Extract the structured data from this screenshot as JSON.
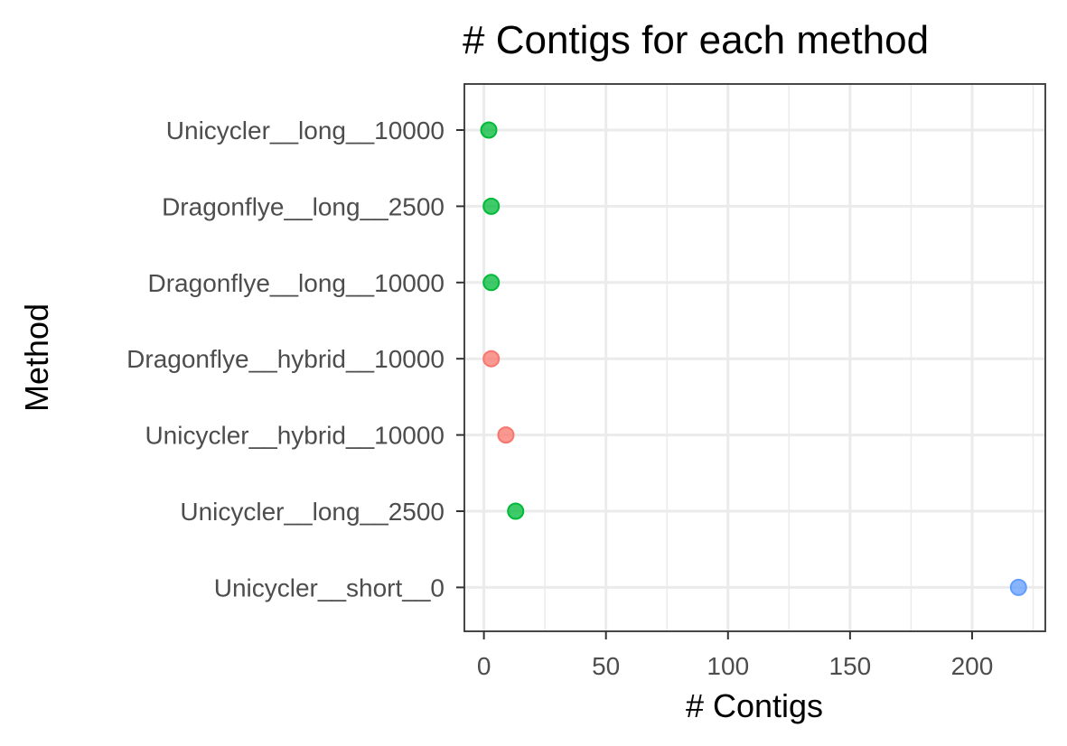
{
  "chart_data": {
    "type": "scatter",
    "title": "# Contigs for each method",
    "xlabel": "# Contigs",
    "ylabel": "Method",
    "xlim": [
      -8,
      230
    ],
    "x_ticks": [
      0,
      50,
      100,
      150,
      200
    ],
    "x_minor_ticks": [
      25,
      75,
      125,
      175,
      225
    ],
    "grid": true,
    "legend": "none",
    "points": [
      {
        "category": "Unicycler__long__10000",
        "value": 2,
        "color": "#00BA38"
      },
      {
        "category": "Dragonflye__long__2500",
        "value": 3,
        "color": "#00BA38"
      },
      {
        "category": "Dragonflye__long__10000",
        "value": 3,
        "color": "#00BA38"
      },
      {
        "category": "Dragonflye__hybrid__10000",
        "value": 3,
        "color": "#F8766D"
      },
      {
        "category": "Unicycler__hybrid__10000",
        "value": 9,
        "color": "#F8766D"
      },
      {
        "category": "Unicycler__long__2500",
        "value": 13,
        "color": "#00BA38"
      },
      {
        "category": "Unicycler__short__0",
        "value": 219,
        "color": "#619CFF"
      }
    ]
  }
}
